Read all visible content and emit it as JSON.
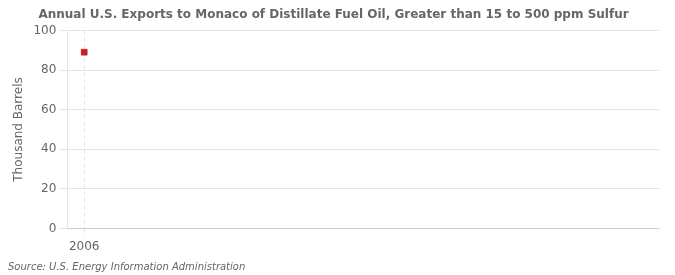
{
  "chart_data": {
    "type": "scatter",
    "title": "Annual U.S. Exports to Monaco of Distillate Fuel Oil, Greater than 15 to 500 ppm Sulfur",
    "ylabel": "Thousand Barrels",
    "annotations": [
      "Source: U.S. Energy Information Administration"
    ],
    "x": [
      2006
    ],
    "values": [
      89
    ],
    "color": "#cc2222",
    "marker": "square",
    "xlim": [
      2005.5,
      2023
    ],
    "xticks": [
      2006
    ],
    "ylim": [
      0,
      100
    ],
    "yticks": [
      0,
      20,
      40,
      60,
      80,
      100
    ],
    "grid": true
  }
}
